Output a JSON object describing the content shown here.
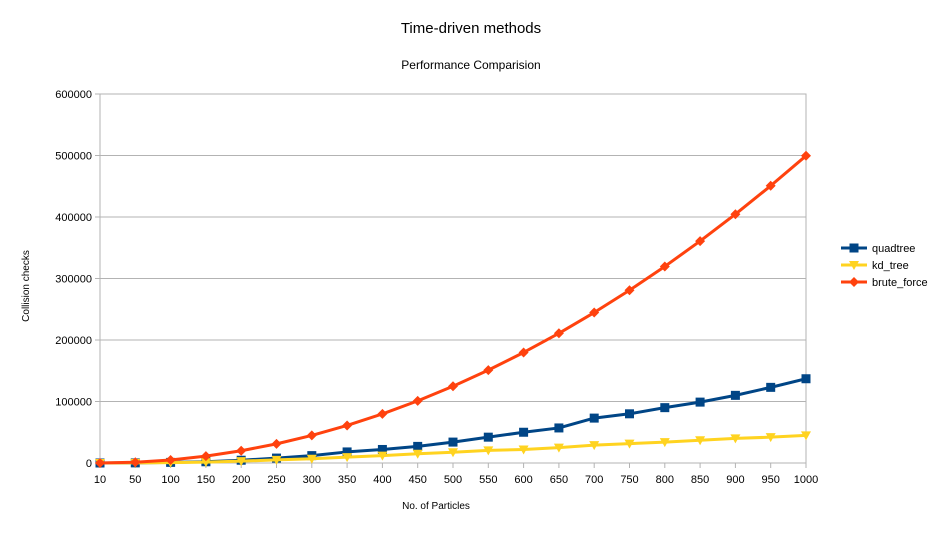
{
  "chart_data": {
    "type": "line",
    "title": "Time-driven methods",
    "subtitle": "Performance Comparision",
    "xlabel": "No. of Particles",
    "ylabel": "Collision checks",
    "ylim": [
      0,
      600000
    ],
    "yticks": [
      "0",
      "100000",
      "200000",
      "300000",
      "400000",
      "500000",
      "600000"
    ],
    "grid": "horizontal",
    "legend_position": "right",
    "categories": [
      "10",
      "50",
      "100",
      "150",
      "200",
      "250",
      "300",
      "350",
      "400",
      "450",
      "500",
      "550",
      "600",
      "650",
      "700",
      "750",
      "800",
      "850",
      "900",
      "950",
      "1000"
    ],
    "series": [
      {
        "name": "quadtree",
        "color": "#004586",
        "marker": "square",
        "values": [
          0,
          200,
          1000,
          2000,
          4500,
          8000,
          12000,
          18000,
          22000,
          27000,
          34000,
          42000,
          50000,
          57000,
          73000,
          80000,
          90000,
          99000,
          110000,
          123000,
          137000
        ]
      },
      {
        "name": "kd_tree",
        "color": "#ffd320",
        "marker": "triangle-down",
        "values": [
          0,
          150,
          700,
          1500,
          3000,
          5000,
          7000,
          9500,
          12000,
          15000,
          17500,
          20500,
          22000,
          25000,
          29000,
          31500,
          34000,
          37000,
          40000,
          42000,
          45000
        ]
      },
      {
        "name": "brute_force",
        "color": "#ff420e",
        "marker": "diamond",
        "values": [
          45,
          1225,
          4950,
          11175,
          19900,
          31125,
          44850,
          61075,
          79800,
          101025,
          124750,
          150975,
          179700,
          210925,
          244650,
          280875,
          319600,
          360825,
          404550,
          450775,
          499500
        ]
      }
    ]
  }
}
